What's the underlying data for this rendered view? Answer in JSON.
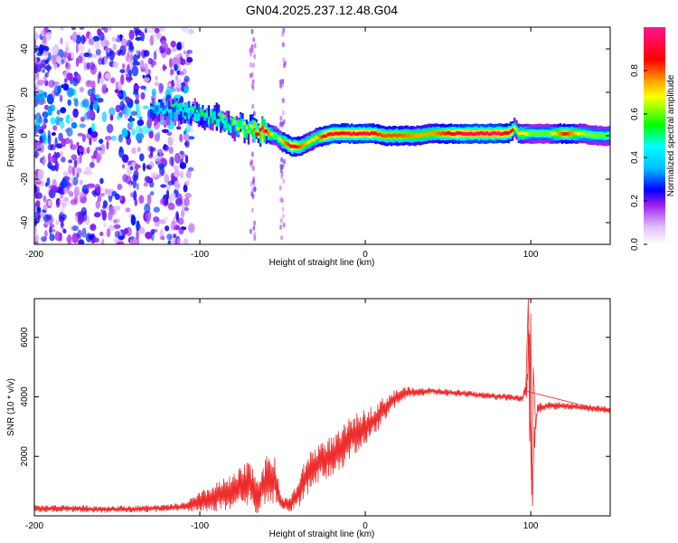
{
  "figure": {
    "title": "GN04.2025.237.12.48.G04"
  },
  "chart_data": [
    {
      "type": "heatmap",
      "xlabel": "Height of straight line (km)",
      "ylabel": "Frequency (Hz)",
      "xlim": [
        -200,
        148
      ],
      "ylim": [
        -50,
        50
      ],
      "x_ticks": [
        -200,
        -100,
        0,
        100
      ],
      "y_ticks": [
        -40,
        -20,
        0,
        20,
        40
      ],
      "colorbar": {
        "label": "Normalized spectral amplitude",
        "range": [
          0,
          1
        ],
        "ticks": [
          "0.0",
          "0.2",
          "0.4",
          "0.6",
          "0.8"
        ],
        "colors": [
          "#ffffff",
          "#a020f0",
          "#0000ff",
          "#00ffff",
          "#00ff00",
          "#ffff00",
          "#ff0000",
          "#ff1493"
        ]
      },
      "ridge": {
        "x": [
          -130,
          -120,
          -110,
          -100,
          -90,
          -80,
          -70,
          -62,
          -55,
          -50,
          -45,
          -40,
          -35,
          -30,
          -25,
          -20,
          -15,
          -10,
          -5,
          0,
          5,
          10,
          20,
          30,
          40,
          50,
          60,
          70,
          80,
          85,
          88,
          90,
          92,
          95,
          100,
          110,
          120,
          130,
          140,
          148
        ],
        "y": [
          12,
          12,
          11,
          10,
          8,
          5,
          3,
          2,
          0,
          -3,
          -5,
          -5,
          -3,
          -1,
          0,
          1,
          1,
          1,
          1,
          1,
          1,
          0,
          0,
          0,
          1,
          1,
          1,
          1,
          1,
          1,
          2,
          4,
          1,
          1,
          1,
          1,
          1,
          1,
          0,
          0
        ],
        "amplitude": [
          0.35,
          0.4,
          0.45,
          0.45,
          0.5,
          0.55,
          0.6,
          0.95,
          0.55,
          0.75,
          0.9,
          0.8,
          0.7,
          0.7,
          0.9,
          0.95,
          0.85,
          0.95,
          0.9,
          0.95,
          0.85,
          0.8,
          0.8,
          0.75,
          0.75,
          0.85,
          0.95,
          0.95,
          0.95,
          0.85,
          0.9,
          0.6,
          0.7,
          0.7,
          0.6,
          0.6,
          0.85,
          0.65,
          0.6,
          0.6
        ]
      },
      "noise_region_x": [
        -200,
        -105
      ]
    },
    {
      "type": "line",
      "xlabel": "Height of straight line (km)",
      "ylabel": "SNR (10 * v/v)",
      "xlim": [
        -200,
        148
      ],
      "ylim": [
        0,
        7300
      ],
      "x_ticks": [
        -200,
        -100,
        0,
        100
      ],
      "y_ticks": [
        2000,
        4000,
        6000
      ],
      "color": "#ee2c2c",
      "series": [
        {
          "x": [
            -200,
            -180,
            -160,
            -140,
            -120,
            -110,
            -100,
            -90,
            -80,
            -70,
            -65,
            -60,
            -55,
            -52,
            -50,
            -45,
            -40,
            -35,
            -30,
            -25,
            -20,
            -15,
            -10,
            -5,
            0,
            5,
            10,
            15,
            20,
            25,
            30,
            40,
            50,
            60,
            70,
            80,
            85,
            90,
            95,
            98,
            99,
            100,
            101,
            102,
            104,
            110,
            120,
            130,
            140,
            148
          ],
          "y": [
            250,
            250,
            220,
            230,
            260,
            300,
            450,
            650,
            800,
            1100,
            700,
            1200,
            1300,
            600,
            400,
            400,
            800,
            1400,
            1700,
            1900,
            2000,
            2200,
            2600,
            2800,
            3000,
            3200,
            3500,
            3800,
            4000,
            4150,
            4150,
            4200,
            4150,
            4100,
            4050,
            4000,
            4000,
            3950,
            3950,
            4500,
            6500,
            2000,
            800,
            2500,
            3600,
            3700,
            3700,
            3650,
            3600,
            3550
          ],
          "noise_amplitude": [
            120,
            120,
            120,
            120,
            120,
            150,
            350,
            500,
            600,
            800,
            700,
            800,
            900,
            400,
            200,
            300,
            500,
            700,
            700,
            700,
            700,
            700,
            700,
            650,
            600,
            550,
            450,
            350,
            300,
            200,
            150,
            120,
            120,
            120,
            120,
            120,
            120,
            120,
            150,
            500,
            800,
            800,
            500,
            500,
            200,
            130,
            120,
            120,
            120,
            120
          ]
        }
      ]
    }
  ]
}
